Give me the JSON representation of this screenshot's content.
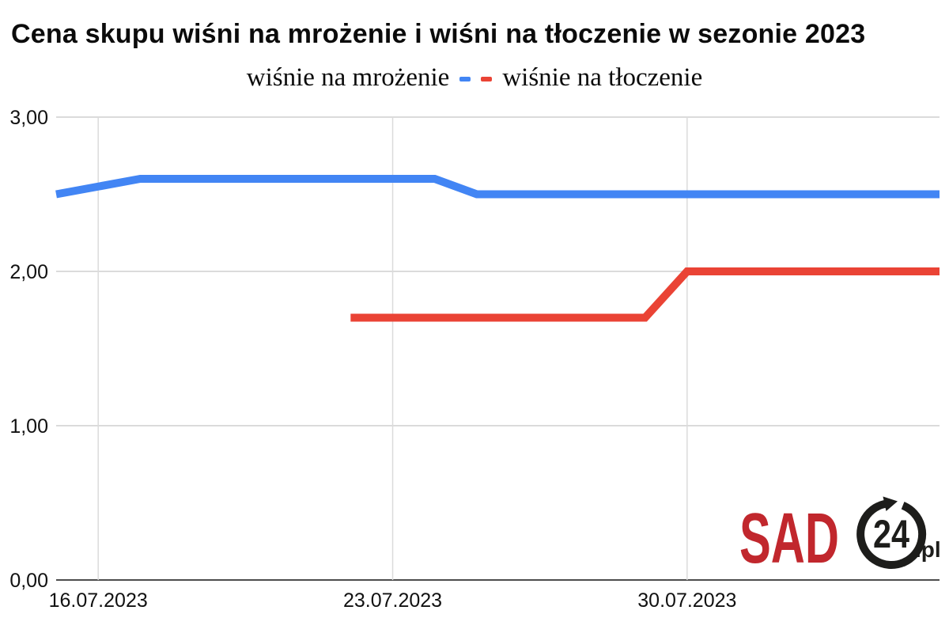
{
  "title": "Cena skupu wiśni na mrożenie i wiśni na tłoczenie w sezonie 2023",
  "legend": {
    "series1_label": "wiśnie na mrożenie",
    "series2_label": "wiśnie na tłoczenie",
    "series1_color": "#4285F4",
    "series2_color": "#EA4335"
  },
  "logo": {
    "sad": "SAD",
    "number": "24",
    "suffix": ".pl",
    "red": "#C1272D",
    "black": "#1D1D1B"
  },
  "chart_data": {
    "type": "line",
    "title": "Cena skupu wiśni na mrożenie i wiśni na tłoczenie w sezonie 2023",
    "xlabel": "",
    "ylabel": "",
    "ylim": [
      0,
      3
    ],
    "grid": true,
    "legend_position": "top-center",
    "x_domain_days": [
      0,
      21
    ],
    "x_ticks": [
      {
        "day": 1,
        "label": "16.07.2023"
      },
      {
        "day": 8,
        "label": "23.07.2023"
      },
      {
        "day": 15,
        "label": "30.07.2023"
      }
    ],
    "y_ticks": [
      {
        "value": 0,
        "label": "0,00"
      },
      {
        "value": 1,
        "label": "1,00"
      },
      {
        "value": 2,
        "label": "2,00"
      },
      {
        "value": 3,
        "label": "3,00"
      }
    ],
    "series": [
      {
        "name": "wiśnie na mrożenie",
        "color": "#4285F4",
        "points": [
          {
            "day": 0,
            "date": "15.07.2023",
            "value": 2.5
          },
          {
            "day": 2,
            "date": "17.07.2023",
            "value": 2.6
          },
          {
            "day": 9,
            "date": "24.07.2023",
            "value": 2.6
          },
          {
            "day": 10,
            "date": "25.07.2023",
            "value": 2.5
          },
          {
            "day": 21,
            "date": "05.08.2023",
            "value": 2.5
          }
        ]
      },
      {
        "name": "wiśnie na tłoczenie",
        "color": "#EA4335",
        "points": [
          {
            "day": 7,
            "date": "22.07.2023",
            "value": 1.7
          },
          {
            "day": 14,
            "date": "29.07.2023",
            "value": 1.7
          },
          {
            "day": 15,
            "date": "30.07.2023",
            "value": 2.0
          },
          {
            "day": 21,
            "date": "05.08.2023",
            "value": 2.0
          }
        ]
      }
    ],
    "layout": {
      "plot_left": 71,
      "plot_right": 1188,
      "plot_top": 148,
      "plot_bottom": 733,
      "grid_color": "#DBDBDB",
      "axis_color": "#4D4D4D",
      "tick_color": "#111111",
      "tick_font_size": 25,
      "y_label_right_x": 61,
      "y_label_baseline_offset": 9,
      "x_label_baseline_y": 767,
      "line_width": 10
    }
  }
}
